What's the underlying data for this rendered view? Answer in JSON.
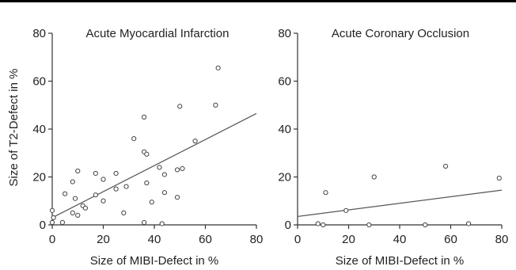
{
  "chart_data": [
    {
      "type": "scatter",
      "title": "Acute Myocardial Infarction",
      "xlabel": "Size of MIBI-Defect in %",
      "ylabel": "Size of T2-Defect in %",
      "xlim": [
        0,
        80
      ],
      "ylim": [
        0,
        80
      ],
      "xticks": [
        "0",
        "20",
        "40",
        "60",
        "80"
      ],
      "yticks": [
        "0",
        "20",
        "40",
        "60",
        "80"
      ],
      "grid": false,
      "points": [
        {
          "x": 0,
          "y": 1
        },
        {
          "x": 0,
          "y": 6
        },
        {
          "x": 0.5,
          "y": 3
        },
        {
          "x": 4,
          "y": 1
        },
        {
          "x": 5,
          "y": 13
        },
        {
          "x": 8,
          "y": 5
        },
        {
          "x": 8,
          "y": 18
        },
        {
          "x": 9,
          "y": 11
        },
        {
          "x": 10,
          "y": 4
        },
        {
          "x": 10,
          "y": 22.5
        },
        {
          "x": 12,
          "y": 8
        },
        {
          "x": 13,
          "y": 7
        },
        {
          "x": 17,
          "y": 12.5
        },
        {
          "x": 17,
          "y": 21.5
        },
        {
          "x": 20,
          "y": 10
        },
        {
          "x": 20,
          "y": 19
        },
        {
          "x": 25,
          "y": 15
        },
        {
          "x": 25,
          "y": 21.5
        },
        {
          "x": 28,
          "y": 5
        },
        {
          "x": 29,
          "y": 16
        },
        {
          "x": 32,
          "y": 36
        },
        {
          "x": 36,
          "y": 1
        },
        {
          "x": 36,
          "y": 45
        },
        {
          "x": 36,
          "y": 30.5
        },
        {
          "x": 37,
          "y": 29.5
        },
        {
          "x": 37,
          "y": 17.5
        },
        {
          "x": 39,
          "y": 9.5
        },
        {
          "x": 42,
          "y": 24
        },
        {
          "x": 43,
          "y": 0.5
        },
        {
          "x": 44,
          "y": 13.5
        },
        {
          "x": 44,
          "y": 21
        },
        {
          "x": 49,
          "y": 11.5
        },
        {
          "x": 49,
          "y": 23
        },
        {
          "x": 50,
          "y": 49.5
        },
        {
          "x": 51,
          "y": 23.5
        },
        {
          "x": 56,
          "y": 35
        },
        {
          "x": 64,
          "y": 50
        },
        {
          "x": 65,
          "y": 65.5
        }
      ],
      "fit_line": {
        "x": [
          0,
          80
        ],
        "y": [
          3,
          46.5
        ]
      }
    },
    {
      "type": "scatter",
      "title": "Acute Coronary Occlusion",
      "xlabel": "Size of MIBI-Defect in %",
      "ylabel": "",
      "xlim": [
        0,
        80
      ],
      "ylim": [
        0,
        80
      ],
      "xticks": [
        "0",
        "20",
        "40",
        "60",
        "80"
      ],
      "yticks": [
        "0",
        "20",
        "40",
        "60",
        "80"
      ],
      "grid": false,
      "points": [
        {
          "x": 8,
          "y": 0.5
        },
        {
          "x": 10,
          "y": 0
        },
        {
          "x": 11,
          "y": 13.5
        },
        {
          "x": 19,
          "y": 6
        },
        {
          "x": 28,
          "y": 0
        },
        {
          "x": 30,
          "y": 20
        },
        {
          "x": 50,
          "y": 0
        },
        {
          "x": 58,
          "y": 24.5
        },
        {
          "x": 67,
          "y": 0.5
        },
        {
          "x": 79,
          "y": 19.5
        }
      ],
      "fit_line": {
        "x": [
          0,
          80
        ],
        "y": [
          3.5,
          14.5
        ]
      }
    }
  ]
}
